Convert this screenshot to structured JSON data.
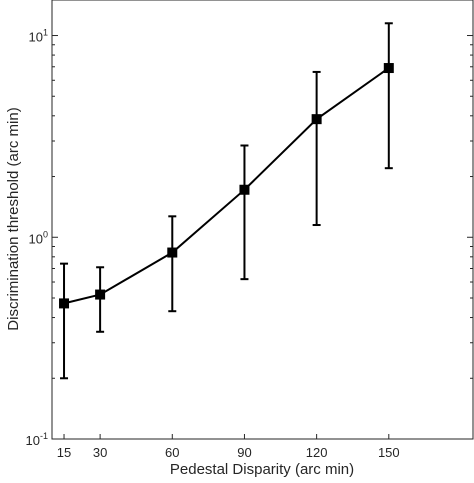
{
  "chart_data": {
    "type": "line",
    "title": "",
    "xlabel": "Pedestal Disparity (arc min)",
    "ylabel": "Discrimination threshold (arc min)",
    "yscale": "log",
    "xlim": [
      10,
      185
    ],
    "ylim": [
      0.1,
      15
    ],
    "xticks": [
      15,
      30,
      60,
      90,
      120,
      150
    ],
    "xtick_labels": [
      "15",
      "30",
      "60",
      "90",
      "120",
      "150"
    ],
    "yticks": [
      0.1,
      1,
      10
    ],
    "ytick_labels": [
      {
        "base": "10",
        "exp": "-1"
      },
      {
        "base": "10",
        "exp": "0"
      },
      {
        "base": "10",
        "exp": "1"
      }
    ],
    "grid": false,
    "legend": "none",
    "series": [
      {
        "color": "#000000",
        "marker": "square",
        "x": [
          15,
          30,
          60,
          90,
          120,
          150
        ],
        "y": [
          0.47,
          0.52,
          0.84,
          1.72,
          3.85,
          6.9
        ],
        "err_low": [
          0.2,
          0.34,
          0.43,
          0.62,
          1.15,
          2.2
        ],
        "err_high": [
          0.74,
          0.71,
          1.27,
          2.85,
          6.6,
          11.5
        ]
      }
    ]
  }
}
